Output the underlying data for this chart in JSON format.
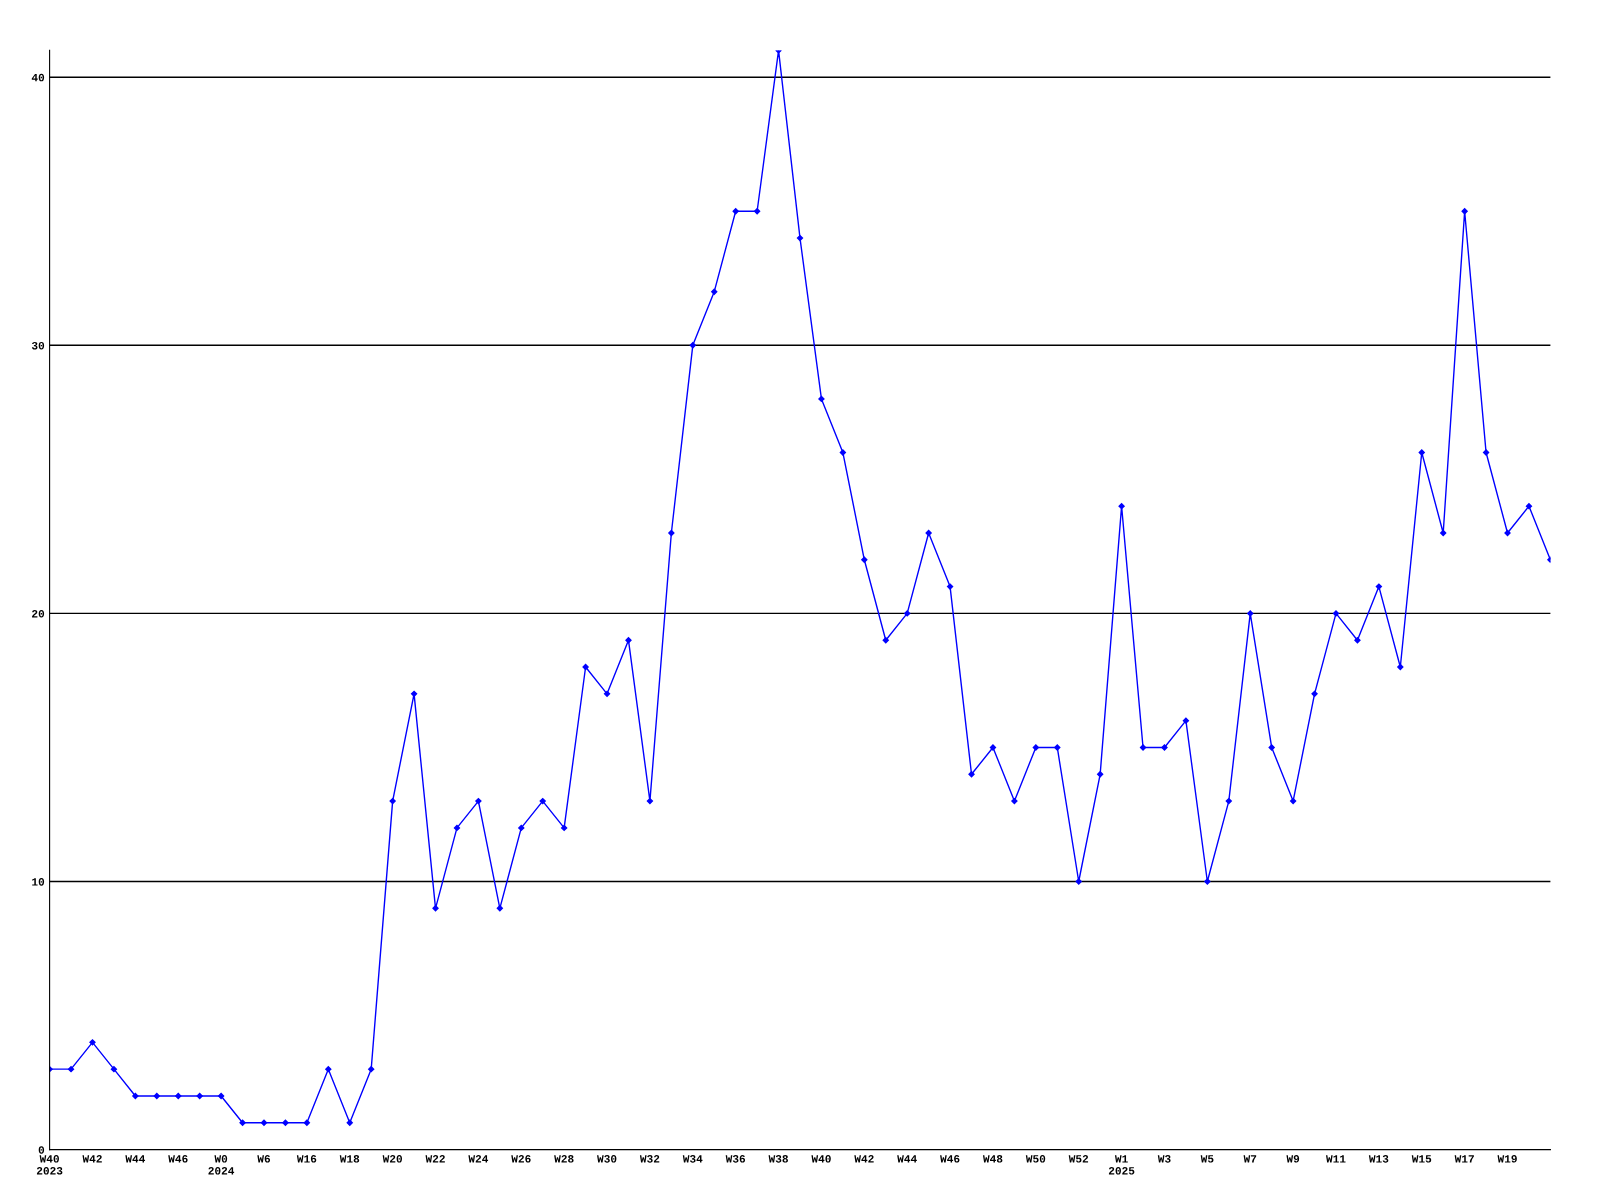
{
  "chart_data": {
    "type": "line",
    "categories": [
      "W40\n2023",
      null,
      "W42",
      null,
      "W44",
      null,
      "W46",
      null,
      "W0\n2024",
      null,
      "W6",
      null,
      "W16",
      null,
      "W18",
      null,
      "W20",
      null,
      "W22",
      null,
      "W24",
      null,
      "W26",
      null,
      "W28",
      null,
      "W30",
      null,
      "W32",
      null,
      "W34",
      null,
      "W36",
      null,
      "W38",
      null,
      "W40",
      null,
      "W42",
      null,
      "W44",
      null,
      "W46",
      null,
      "W48",
      null,
      "W50",
      null,
      "W52",
      null,
      "W1\n2025",
      null,
      "W3",
      null,
      "W5",
      null,
      "W7",
      null,
      "W9",
      null,
      "W11",
      null,
      "W13",
      null,
      "W15",
      null,
      "W17",
      null,
      "W19",
      null,
      null
    ],
    "series": [
      {
        "color": "#0000ff",
        "values": [
          3,
          3,
          4,
          3,
          2,
          2,
          2,
          2,
          2,
          1,
          1,
          1,
          1,
          3,
          1,
          3,
          13,
          17,
          9,
          12,
          13,
          9,
          12,
          13,
          12,
          18,
          17,
          19,
          13,
          23,
          30,
          32,
          35,
          35,
          41,
          34,
          28,
          26,
          22,
          19,
          20,
          23,
          21,
          14,
          15,
          13,
          15,
          15,
          10,
          14,
          24,
          15,
          15,
          16,
          10,
          13,
          20,
          15,
          13,
          17,
          20,
          19,
          21,
          18,
          26,
          23,
          35,
          26,
          23,
          24,
          22
        ]
      }
    ],
    "ylim": [
      0,
      41
    ],
    "yticks": [
      0,
      10,
      20,
      30,
      40
    ],
    "grid": "y",
    "marker": "diamond",
    "line_style": "solid",
    "legend": false
  }
}
